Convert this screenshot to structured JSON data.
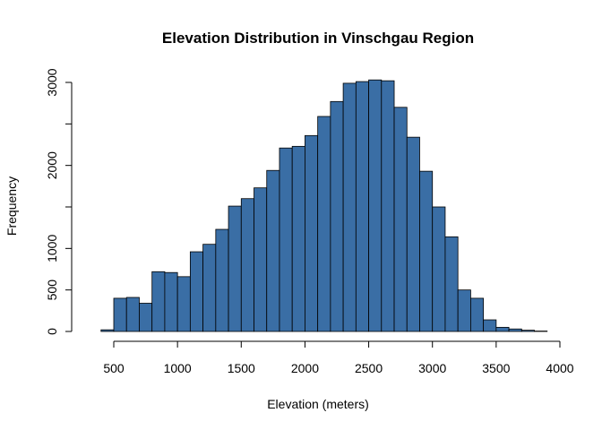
{
  "chart_data": {
    "type": "bar",
    "subtype": "histogram",
    "title": "Elevation Distribution in Vinschgau Region",
    "xlabel": "Elevation (meters)",
    "ylabel": "Frequency",
    "bin_width": 100,
    "bin_start": 300,
    "bin_end": 3900,
    "bar_color": "#3a6ea5",
    "counts": [
      0,
      20,
      400,
      410,
      340,
      720,
      710,
      660,
      960,
      1050,
      1230,
      1510,
      1600,
      1730,
      1940,
      2210,
      2230,
      2360,
      2590,
      2770,
      2990,
      3010,
      3030,
      3020,
      2700,
      2340,
      1930,
      1500,
      1140,
      500,
      400,
      140,
      50,
      30,
      15,
      5
    ],
    "xlim": [
      300,
      3900
    ],
    "ylim": [
      0,
      3000
    ],
    "x_ticks": [
      500,
      1000,
      1500,
      2000,
      2500,
      3000,
      3500,
      4000
    ],
    "y_ticks": [
      0,
      500,
      1000,
      2000,
      3000
    ],
    "y_minor_ticks": [
      1500,
      2500
    ],
    "grid": false
  }
}
